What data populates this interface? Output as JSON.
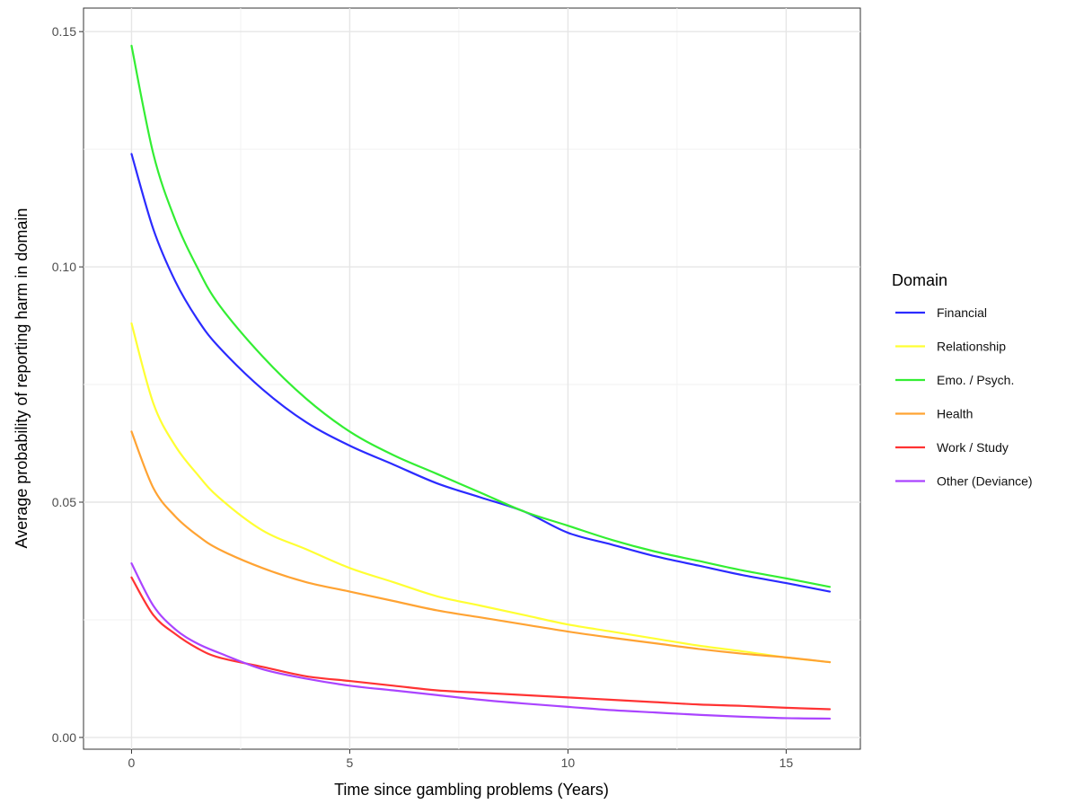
{
  "chart_data": {
    "type": "line",
    "xlabel": "Time since gambling problems (Years)",
    "ylabel": "Average probability of reporting harm in domain",
    "xlim": [
      -1.1,
      16.7
    ],
    "ylim": [
      -0.0025,
      0.155
    ],
    "x_ticks": [
      0,
      5,
      10,
      15
    ],
    "y_ticks": [
      0.0,
      0.05,
      0.1,
      0.15
    ],
    "x_tick_labels": [
      "0",
      "5",
      "10",
      "15"
    ],
    "y_tick_labels": [
      "0.00",
      "0.05",
      "0.10",
      "0.15"
    ],
    "grid": true,
    "legend": {
      "title": "Domain",
      "position": "right"
    },
    "x": [
      0,
      0.5,
      1,
      1.5,
      2,
      3,
      4,
      5,
      6,
      7,
      8,
      9,
      10,
      11,
      12,
      13,
      14,
      15,
      16
    ],
    "series": [
      {
        "name": "Financial",
        "color": "#2b2bff",
        "values": [
          0.124,
          0.108,
          0.097,
          0.089,
          0.083,
          0.074,
          0.067,
          0.062,
          0.058,
          0.054,
          0.051,
          0.048,
          0.0435,
          0.041,
          0.0385,
          0.0365,
          0.0345,
          0.0328,
          0.031
        ]
      },
      {
        "name": "Relationship",
        "color": "#ffff33",
        "values": [
          0.088,
          0.071,
          0.062,
          0.056,
          0.051,
          0.044,
          0.04,
          0.036,
          0.033,
          0.03,
          0.028,
          0.026,
          0.024,
          0.0225,
          0.021,
          0.0195,
          0.0183,
          0.017,
          0.016
        ]
      },
      {
        "name": "Emo. / Psych.",
        "color": "#33ee33",
        "values": [
          0.147,
          0.124,
          0.11,
          0.1,
          0.092,
          0.081,
          0.072,
          0.065,
          0.06,
          0.056,
          0.052,
          0.048,
          0.045,
          0.042,
          0.0395,
          0.0375,
          0.0355,
          0.0338,
          0.032
        ]
      },
      {
        "name": "Health",
        "color": "#ffa333",
        "values": [
          0.065,
          0.053,
          0.047,
          0.043,
          0.04,
          0.036,
          0.033,
          0.031,
          0.029,
          0.027,
          0.0255,
          0.024,
          0.0225,
          0.0212,
          0.02,
          0.0188,
          0.0178,
          0.017,
          0.016
        ]
      },
      {
        "name": "Work / Study",
        "color": "#ff3333",
        "values": [
          0.034,
          0.026,
          0.022,
          0.019,
          0.017,
          0.015,
          0.013,
          0.012,
          0.011,
          0.01,
          0.0095,
          0.009,
          0.0085,
          0.008,
          0.0075,
          0.007,
          0.0067,
          0.0063,
          0.006
        ]
      },
      {
        "name": "Other (Deviance)",
        "color": "#aa44ff",
        "values": [
          0.037,
          0.028,
          0.023,
          0.02,
          0.018,
          0.0145,
          0.0125,
          0.011,
          0.01,
          0.009,
          0.008,
          0.0072,
          0.0065,
          0.0058,
          0.0053,
          0.0048,
          0.0044,
          0.0041,
          0.004
        ]
      }
    ]
  }
}
